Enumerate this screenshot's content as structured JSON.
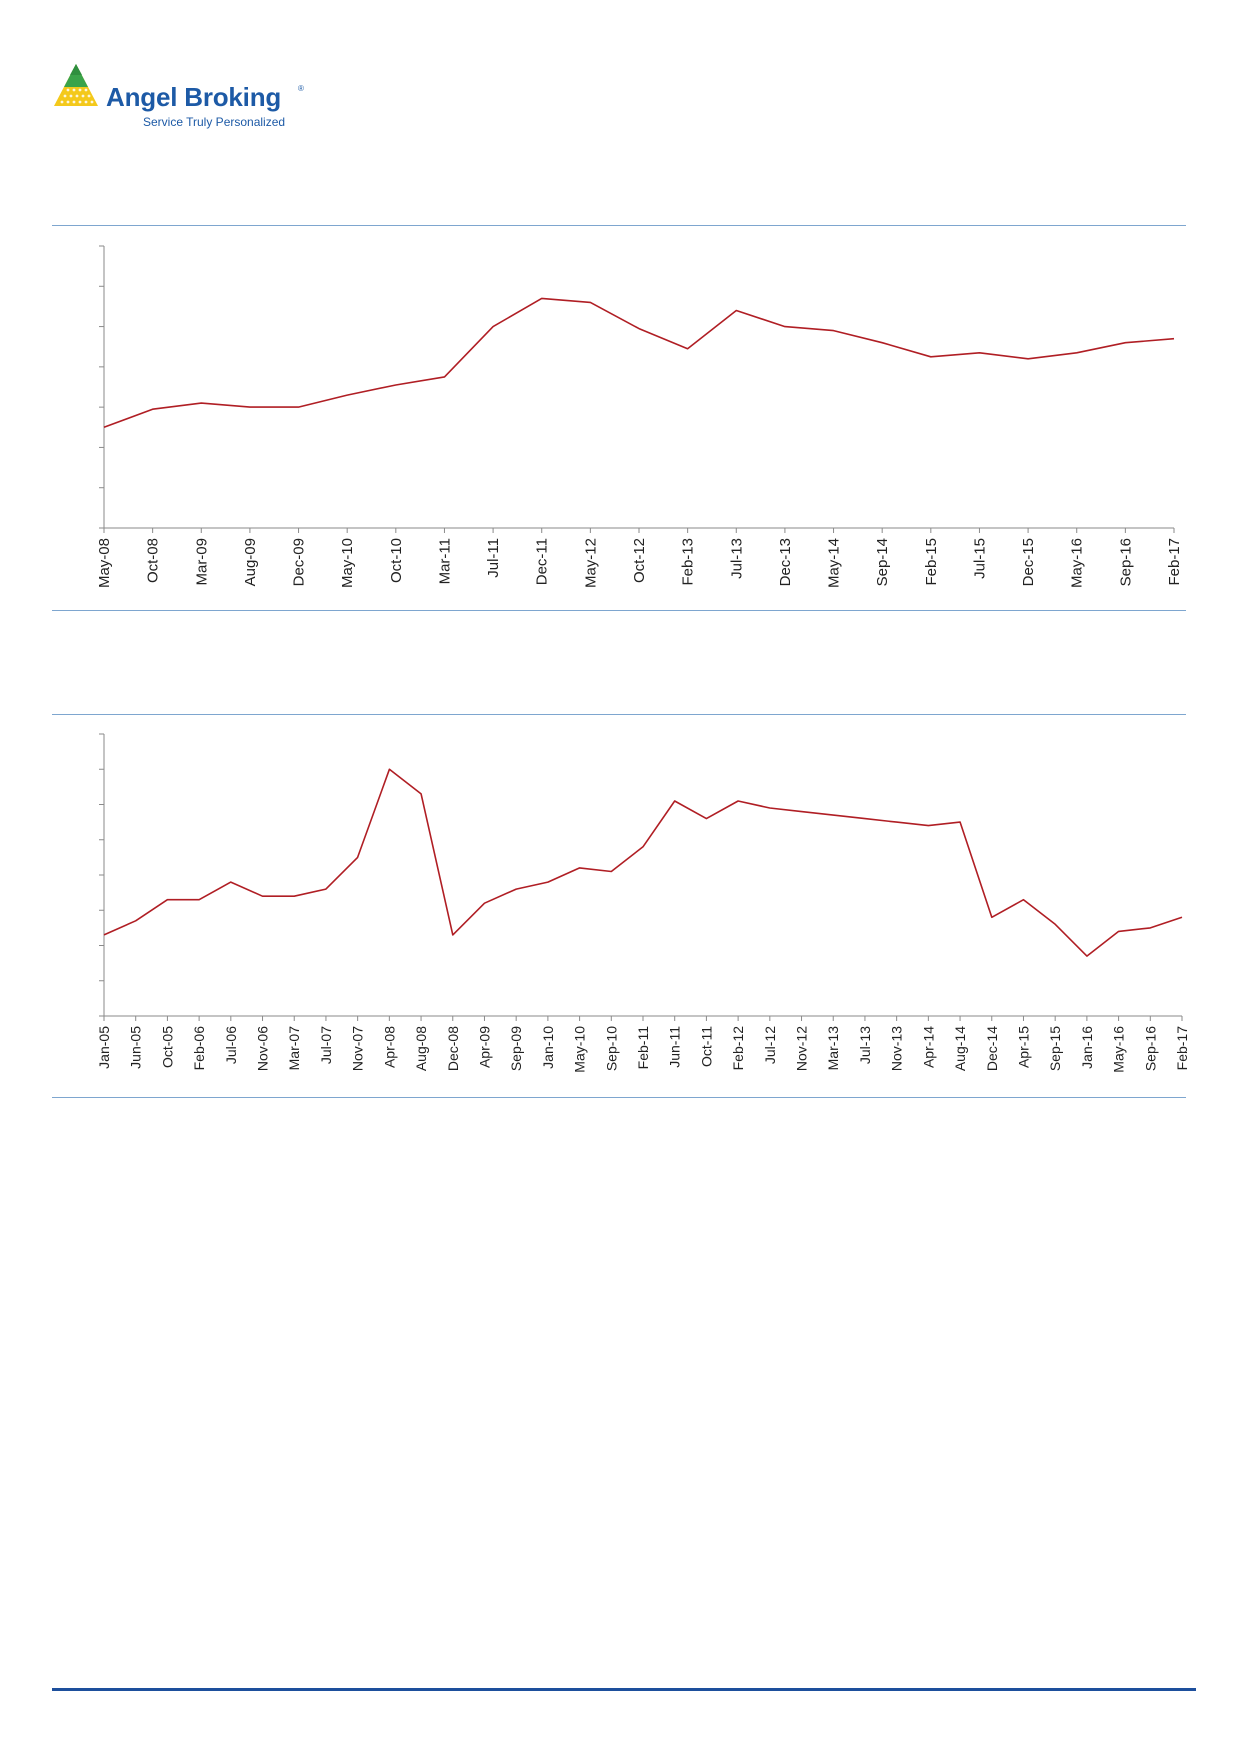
{
  "brand": {
    "name": "Angel Broking",
    "registered_mark": "®",
    "tagline": "Service Truly Personalized",
    "color": "#1d5aa6"
  },
  "chart_data": [
    {
      "type": "line",
      "line_color": "#b01e24",
      "x": [
        "May-08",
        "Oct-08",
        "Mar-09",
        "Aug-09",
        "Dec-09",
        "May-10",
        "Oct-10",
        "Mar-11",
        "Jul-11",
        "Dec-11",
        "May-12",
        "Oct-12",
        "Feb-13",
        "Jul-13",
        "Dec-13",
        "May-14",
        "Sep-14",
        "Feb-15",
        "Jul-15",
        "Dec-15",
        "May-16",
        "Sep-16",
        "Feb-17"
      ],
      "xlabels": [
        "May-08",
        "Oct-08",
        "Mar-09",
        "Aug-09",
        "Dec-09",
        "May-10",
        "Oct-10",
        "Mar-11",
        "Jul-11",
        "Dec-11",
        "May-12",
        "Oct-12",
        "Feb-13",
        "Jul-13",
        "Dec-13",
        "May-14",
        "Sep-14",
        "Feb-15",
        "Jul-15",
        "Dec-15",
        "May-16",
        "Sep-16",
        "Feb-17"
      ],
      "ylim": [
        0,
        7
      ],
      "y_tick_count": 8,
      "values": [
        2.5,
        2.95,
        3.1,
        3.0,
        3.0,
        3.3,
        3.55,
        3.75,
        5.0,
        5.7,
        5.6,
        4.95,
        4.45,
        5.4,
        5.0,
        4.9,
        4.6,
        4.25,
        4.35,
        4.2,
        4.35,
        4.6,
        4.7
      ]
    },
    {
      "type": "line",
      "line_color": "#b01e24",
      "x": [
        "Jan-05",
        "Jun-05",
        "Oct-05",
        "Feb-06",
        "Jul-06",
        "Nov-06",
        "Mar-07",
        "Jul-07",
        "Nov-07",
        "Apr-08",
        "Aug-08",
        "Dec-08",
        "Apr-09",
        "Sep-09",
        "Jan-10",
        "May-10",
        "Sep-10",
        "Feb-11",
        "Jun-11",
        "Oct-11",
        "Feb-12",
        "Jul-12",
        "Nov-12",
        "Mar-13",
        "Jul-13",
        "Nov-13",
        "Apr-14",
        "Aug-14",
        "Dec-14",
        "Apr-15",
        "Sep-15",
        "Jan-16",
        "May-16",
        "Sep-16",
        "Feb-17"
      ],
      "xlabels": [
        "Jan-05",
        "Jun-05",
        "Oct-05",
        "Feb-06",
        "Jul-06",
        "Nov-06",
        "Mar-07",
        "Jul-07",
        "Nov-07",
        "Apr-08",
        "Aug-08",
        "Dec-08",
        "Apr-09",
        "Sep-09",
        "Jan-10",
        "May-10",
        "Sep-10",
        "Feb-11",
        "Jun-11",
        "Oct-11",
        "Feb-12",
        "Jul-12",
        "Nov-12",
        "Mar-13",
        "Jul-13",
        "Nov-13",
        "Apr-14",
        "Aug-14",
        "Dec-14",
        "Apr-15",
        "Sep-15",
        "Jan-16",
        "May-16",
        "Sep-16",
        "Feb-17"
      ],
      "ylim": [
        0,
        8
      ],
      "y_tick_count": 9,
      "values": [
        2.3,
        2.7,
        3.3,
        3.3,
        3.8,
        3.4,
        3.4,
        3.6,
        4.5,
        7.0,
        6.3,
        2.3,
        3.2,
        3.6,
        3.8,
        4.2,
        4.1,
        4.8,
        6.1,
        5.6,
        6.1,
        5.9,
        5.8,
        5.7,
        5.6,
        5.5,
        5.4,
        5.5,
        2.8,
        3.3,
        2.6,
        1.7,
        2.4,
        2.5,
        2.8
      ]
    }
  ]
}
